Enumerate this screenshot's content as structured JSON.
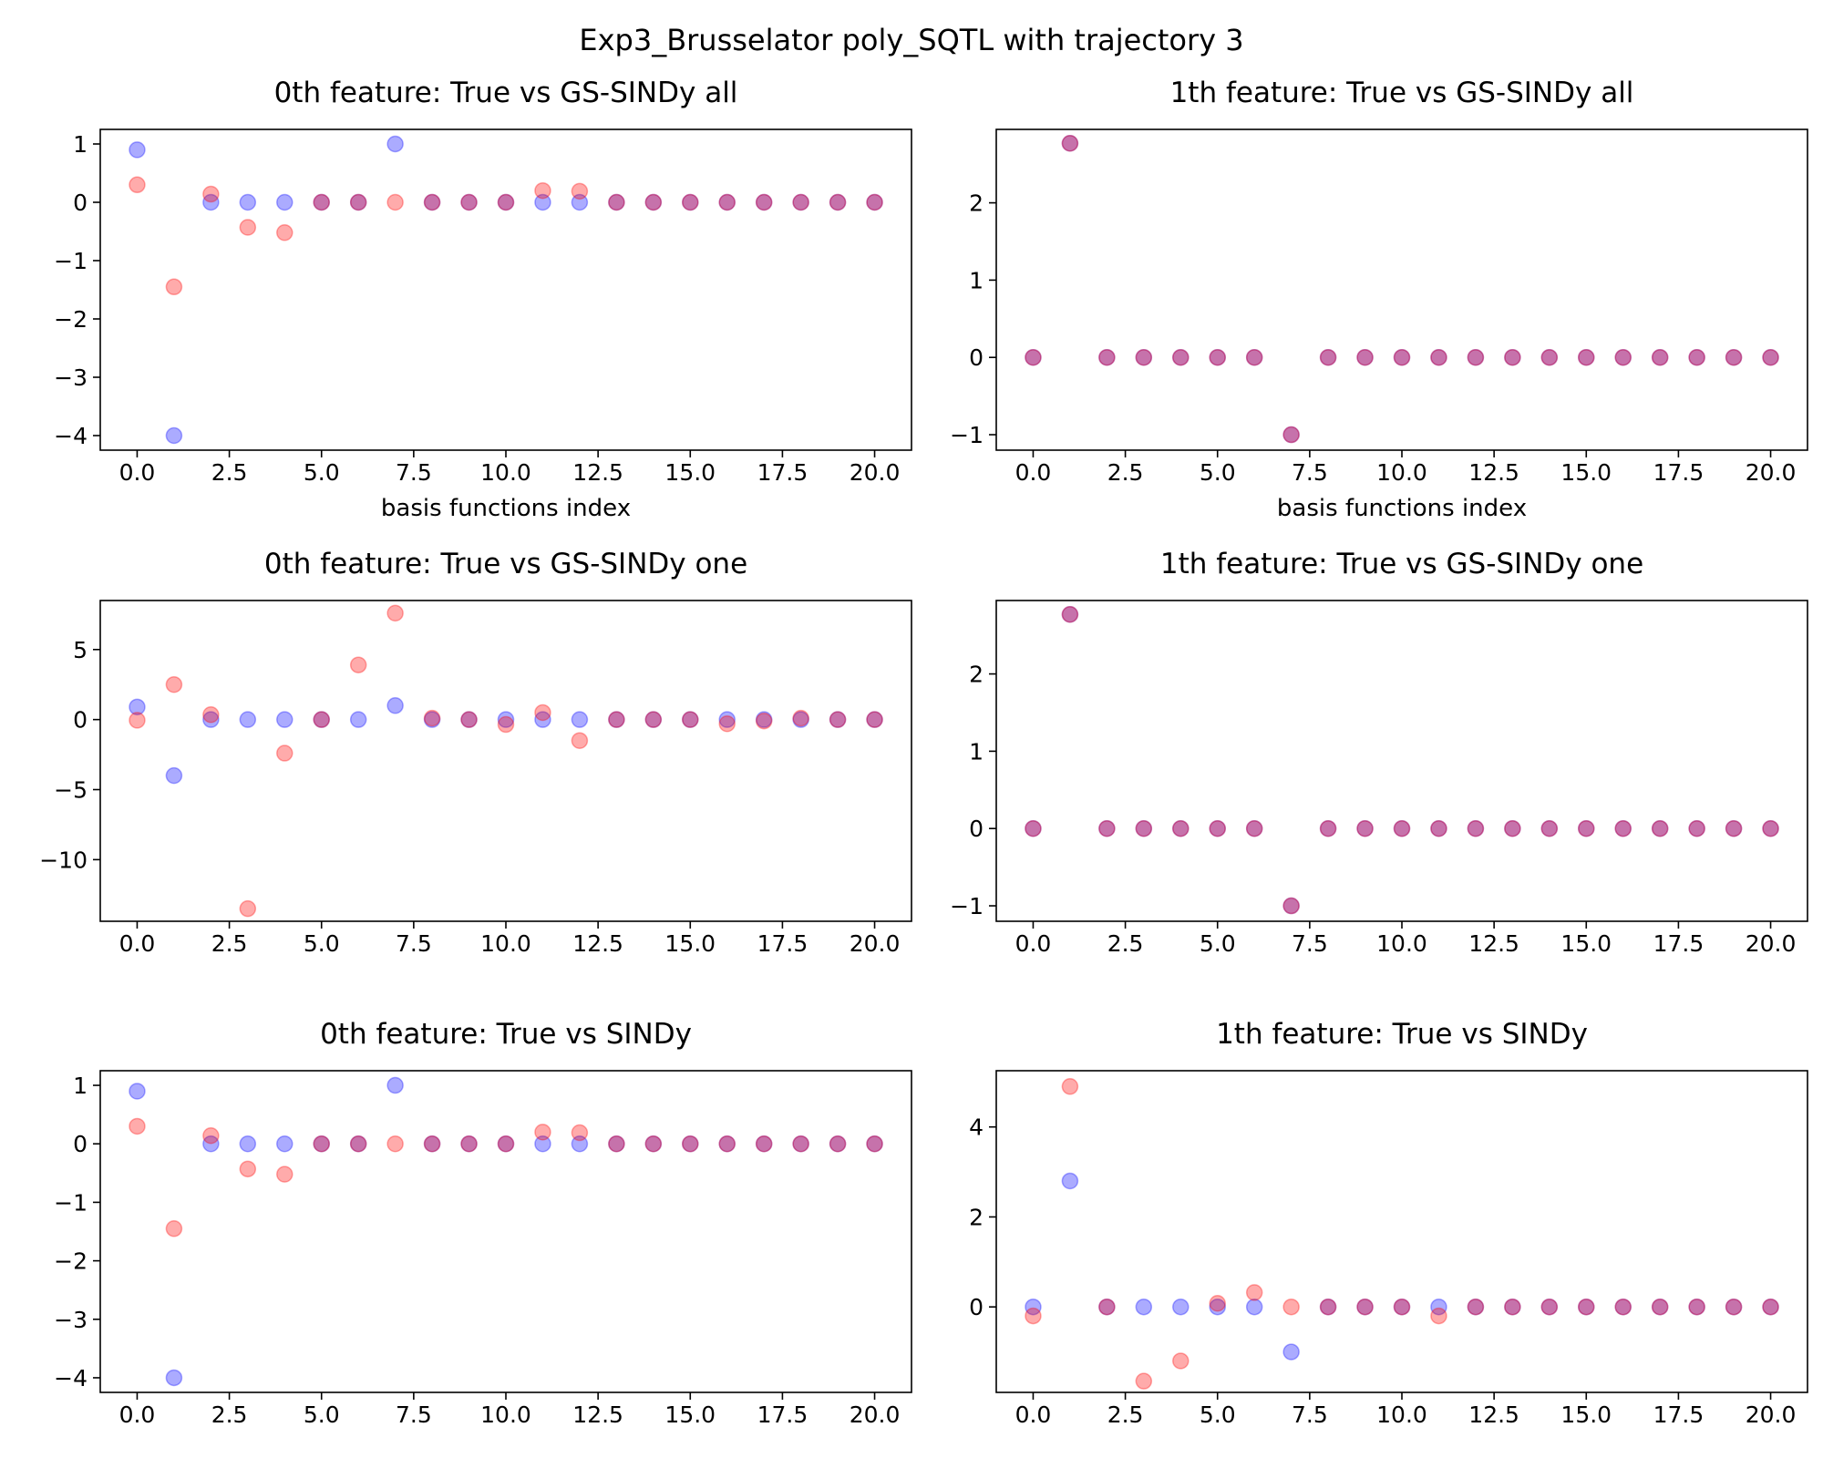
{
  "figure_title": "Exp3_Brusselator poly_SQTL with trajectory 3",
  "colors": {
    "true_marker": "#0000ff",
    "model_marker": "#ff0000",
    "marker_alpha": 0.33
  },
  "chart_data": [
    {
      "type": "scatter",
      "title": "0th feature: True vs GS-SINDy all",
      "xlabel": "basis functions index",
      "ylabel": "",
      "xlim": [
        -1,
        21
      ],
      "ylim": [
        -4.25,
        1.25
      ],
      "xticks": [
        0,
        2.5,
        5,
        7.5,
        10,
        12.5,
        15,
        17.5,
        20
      ],
      "xtick_labels": [
        "0.0",
        "2.5",
        "5.0",
        "7.5",
        "10.0",
        "12.5",
        "15.0",
        "17.5",
        "20.0"
      ],
      "yticks": [
        1,
        0,
        -1,
        -2,
        -3,
        -4
      ],
      "ytick_labels": [
        "1",
        "0",
        "−1",
        "−2",
        "−3",
        "−4"
      ],
      "x": [
        0,
        1,
        2,
        3,
        4,
        5,
        6,
        7,
        8,
        9,
        10,
        11,
        12,
        13,
        14,
        15,
        16,
        17,
        18,
        19,
        20
      ],
      "series": [
        {
          "color": "#0000ff",
          "values": [
            0.9,
            -4.0,
            0,
            0,
            0,
            0,
            0,
            1.0,
            0,
            0,
            0,
            0,
            0,
            0,
            0,
            0,
            0,
            0,
            0,
            0,
            0
          ]
        },
        {
          "color": "#ff0000",
          "values": [
            0.3,
            -1.45,
            0.14,
            -0.43,
            -0.52,
            0,
            0,
            0,
            0,
            0,
            0,
            0.2,
            0.19,
            0,
            0,
            0,
            0,
            0,
            0,
            0,
            0
          ]
        }
      ]
    },
    {
      "type": "scatter",
      "title": "1th feature: True vs GS-SINDy all",
      "xlabel": "basis functions index",
      "ylabel": "",
      "xlim": [
        -1,
        21
      ],
      "ylim": [
        -1.2,
        2.95
      ],
      "xticks": [
        0,
        2.5,
        5,
        7.5,
        10,
        12.5,
        15,
        17.5,
        20
      ],
      "xtick_labels": [
        "0.0",
        "2.5",
        "5.0",
        "7.5",
        "10.0",
        "12.5",
        "15.0",
        "17.5",
        "20.0"
      ],
      "yticks": [
        2,
        1,
        0,
        -1
      ],
      "ytick_labels": [
        "2",
        "1",
        "0",
        "−1"
      ],
      "x": [
        0,
        1,
        2,
        3,
        4,
        5,
        6,
        7,
        8,
        9,
        10,
        11,
        12,
        13,
        14,
        15,
        16,
        17,
        18,
        19,
        20
      ],
      "series": [
        {
          "color": "#0000ff",
          "values": [
            0,
            2.77,
            0,
            0,
            0,
            0,
            0,
            -1.0,
            0,
            0,
            0,
            0,
            0,
            0,
            0,
            0,
            0,
            0,
            0,
            0,
            0
          ]
        },
        {
          "color": "#ff0000",
          "values": [
            0,
            2.77,
            0,
            0,
            0,
            0,
            0,
            -1.0,
            0,
            0,
            0,
            0,
            0,
            0,
            0,
            0,
            0,
            0,
            0,
            0,
            0
          ]
        }
      ]
    },
    {
      "type": "scatter",
      "title": "0th feature: True vs GS-SINDy one",
      "xlabel": "",
      "ylabel": "",
      "xlim": [
        -1,
        21
      ],
      "ylim": [
        -14.4,
        8.5
      ],
      "xticks": [
        0,
        2.5,
        5,
        7.5,
        10,
        12.5,
        15,
        17.5,
        20
      ],
      "xtick_labels": [
        "0.0",
        "2.5",
        "5.0",
        "7.5",
        "10.0",
        "12.5",
        "15.0",
        "17.5",
        "20.0"
      ],
      "yticks": [
        5,
        0,
        -5,
        -10
      ],
      "ytick_labels": [
        "5",
        "0",
        "−5",
        "−10"
      ],
      "x": [
        0,
        1,
        2,
        3,
        4,
        5,
        6,
        7,
        8,
        9,
        10,
        11,
        12,
        13,
        14,
        15,
        16,
        17,
        18,
        19,
        20
      ],
      "series": [
        {
          "color": "#0000ff",
          "values": [
            0.9,
            -4.0,
            0,
            0,
            0,
            0,
            0,
            1.0,
            0,
            0,
            0,
            0,
            0,
            0,
            0,
            0,
            0,
            0,
            0,
            0,
            0
          ]
        },
        {
          "color": "#ff0000",
          "values": [
            -0.05,
            2.5,
            0.35,
            -13.5,
            -2.4,
            0,
            3.9,
            7.6,
            0.1,
            0,
            -0.35,
            0.5,
            -1.5,
            0,
            0,
            0,
            -0.3,
            -0.1,
            0.1,
            0,
            0
          ]
        }
      ]
    },
    {
      "type": "scatter",
      "title": "1th feature: True vs GS-SINDy one",
      "xlabel": "",
      "ylabel": "",
      "xlim": [
        -1,
        21
      ],
      "ylim": [
        -1.2,
        2.95
      ],
      "xticks": [
        0,
        2.5,
        5,
        7.5,
        10,
        12.5,
        15,
        17.5,
        20
      ],
      "xtick_labels": [
        "0.0",
        "2.5",
        "5.0",
        "7.5",
        "10.0",
        "12.5",
        "15.0",
        "17.5",
        "20.0"
      ],
      "yticks": [
        2,
        1,
        0,
        -1
      ],
      "ytick_labels": [
        "2",
        "1",
        "0",
        "−1"
      ],
      "x": [
        0,
        1,
        2,
        3,
        4,
        5,
        6,
        7,
        8,
        9,
        10,
        11,
        12,
        13,
        14,
        15,
        16,
        17,
        18,
        19,
        20
      ],
      "series": [
        {
          "color": "#0000ff",
          "values": [
            0,
            2.77,
            0,
            0,
            0,
            0,
            0,
            -1.0,
            0,
            0,
            0,
            0,
            0,
            0,
            0,
            0,
            0,
            0,
            0,
            0,
            0
          ]
        },
        {
          "color": "#ff0000",
          "values": [
            0,
            2.77,
            0,
            0,
            0,
            0,
            0,
            -1.0,
            0,
            0,
            0,
            0,
            0,
            0,
            0,
            0,
            0,
            0,
            0,
            0,
            0
          ]
        }
      ]
    },
    {
      "type": "scatter",
      "title": "0th feature: True vs SINDy",
      "xlabel": "",
      "ylabel": "",
      "xlim": [
        -1,
        21
      ],
      "ylim": [
        -4.25,
        1.25
      ],
      "xticks": [
        0,
        2.5,
        5,
        7.5,
        10,
        12.5,
        15,
        17.5,
        20
      ],
      "xtick_labels": [
        "0.0",
        "2.5",
        "5.0",
        "7.5",
        "10.0",
        "12.5",
        "15.0",
        "17.5",
        "20.0"
      ],
      "yticks": [
        1,
        0,
        -1,
        -2,
        -3,
        -4
      ],
      "ytick_labels": [
        "1",
        "0",
        "−1",
        "−2",
        "−3",
        "−4"
      ],
      "x": [
        0,
        1,
        2,
        3,
        4,
        5,
        6,
        7,
        8,
        9,
        10,
        11,
        12,
        13,
        14,
        15,
        16,
        17,
        18,
        19,
        20
      ],
      "series": [
        {
          "color": "#0000ff",
          "values": [
            0.9,
            -4.0,
            0,
            0,
            0,
            0,
            0,
            1.0,
            0,
            0,
            0,
            0,
            0,
            0,
            0,
            0,
            0,
            0,
            0,
            0,
            0
          ]
        },
        {
          "color": "#ff0000",
          "values": [
            0.3,
            -1.45,
            0.14,
            -0.43,
            -0.52,
            0,
            0,
            0,
            0,
            0,
            0,
            0.2,
            0.19,
            0,
            0,
            0,
            0,
            0,
            0,
            0,
            0
          ]
        }
      ]
    },
    {
      "type": "scatter",
      "title": "1th feature: True vs SINDy",
      "xlabel": "",
      "ylabel": "",
      "xlim": [
        -1,
        21
      ],
      "ylim": [
        -1.9,
        5.25
      ],
      "xticks": [
        0,
        2.5,
        5,
        7.5,
        10,
        12.5,
        15,
        17.5,
        20
      ],
      "xtick_labels": [
        "0.0",
        "2.5",
        "5.0",
        "7.5",
        "10.0",
        "12.5",
        "15.0",
        "17.5",
        "20.0"
      ],
      "yticks": [
        4,
        2,
        0
      ],
      "ytick_labels": [
        "4",
        "2",
        "0"
      ],
      "x": [
        0,
        1,
        2,
        3,
        4,
        5,
        6,
        7,
        8,
        9,
        10,
        11,
        12,
        13,
        14,
        15,
        16,
        17,
        18,
        19,
        20
      ],
      "series": [
        {
          "color": "#0000ff",
          "values": [
            0,
            2.8,
            0,
            0,
            0,
            0,
            0,
            -1.0,
            0,
            0,
            0,
            0,
            0,
            0,
            0,
            0,
            0,
            0,
            0,
            0,
            0
          ]
        },
        {
          "color": "#ff0000",
          "values": [
            -0.2,
            4.9,
            0,
            -1.65,
            -1.2,
            0.08,
            0.32,
            0,
            0,
            0,
            0,
            -0.2,
            0,
            0,
            0,
            0,
            0,
            0,
            0,
            0,
            0
          ]
        }
      ]
    }
  ]
}
